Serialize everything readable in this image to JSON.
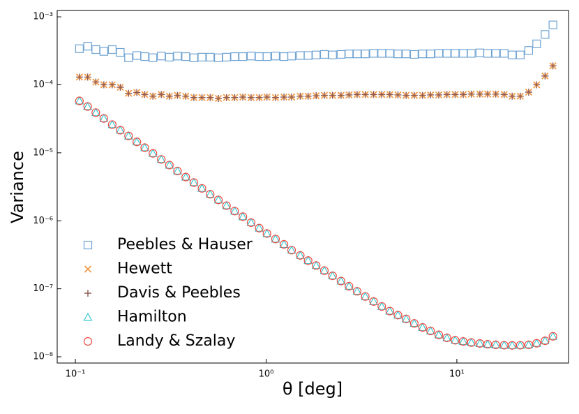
{
  "chart_data": {
    "type": "scatter",
    "x_label": "θ [deg]",
    "y_label": "Variance",
    "log_x": true,
    "log_y": true,
    "legend_position": "lower left",
    "xlim": [
      0.0803,
      38.5
    ],
    "ylim": [
      8.09e-09,
      0.00124
    ],
    "xticks": [
      {
        "value": 0.1,
        "label": "10⁻¹"
      },
      {
        "value": 1,
        "label": "10⁰"
      },
      {
        "value": 10,
        "label": "10¹"
      }
    ],
    "yticks": [
      {
        "value": 1e-08,
        "label": "10⁻⁸"
      },
      {
        "value": 1e-07,
        "label": "10⁻⁷"
      },
      {
        "value": 1e-06,
        "label": "10⁻⁶"
      },
      {
        "value": 1e-05,
        "label": "10⁻⁵"
      },
      {
        "value": 0.0001,
        "label": "10⁻⁴"
      },
      {
        "value": 0.001,
        "label": "10⁻³"
      }
    ],
    "x": [
      0.105,
      0.116,
      0.128,
      0.141,
      0.156,
      0.172,
      0.19,
      0.21,
      0.231,
      0.255,
      0.282,
      0.311,
      0.343,
      0.379,
      0.418,
      0.461,
      0.509,
      0.562,
      0.62,
      0.684,
      0.755,
      0.834,
      0.92,
      1.01,
      1.12,
      1.24,
      1.36,
      1.51,
      1.66,
      1.83,
      2.02,
      2.23,
      2.47,
      2.72,
      3.0,
      3.31,
      3.66,
      4.04,
      4.45,
      4.91,
      5.42,
      5.98,
      6.61,
      7.28,
      8.04,
      8.87,
      9.79,
      10.8,
      11.9,
      13.2,
      14.5,
      16.0,
      17.7,
      19.5,
      21.5,
      23.8,
      26.2,
      29.0,
      31.9
    ],
    "series": [
      {
        "name": "Peebles & Hauser",
        "color": "#6fa3d2",
        "marker": "square",
        "values": [
          0.00034,
          0.00037,
          0.00033,
          0.00031,
          0.00033,
          0.0003,
          0.00025,
          0.00027,
          0.00026,
          0.00025,
          0.000265,
          0.000255,
          0.000265,
          0.00026,
          0.00025,
          0.000255,
          0.000255,
          0.00025,
          0.000255,
          0.00026,
          0.00026,
          0.000265,
          0.00026,
          0.00026,
          0.000265,
          0.00026,
          0.000265,
          0.00027,
          0.00027,
          0.000275,
          0.00028,
          0.000275,
          0.00028,
          0.000285,
          0.000285,
          0.000285,
          0.00029,
          0.00029,
          0.00029,
          0.000285,
          0.000285,
          0.00028,
          0.000285,
          0.000285,
          0.00029,
          0.00029,
          0.00029,
          0.00029,
          0.00029,
          0.000295,
          0.00029,
          0.00029,
          0.00029,
          0.000275,
          0.000275,
          0.00032,
          0.0004,
          0.00055,
          0.00076
        ]
      },
      {
        "name": "Hewett",
        "color": "#f39c4a",
        "marker": "x",
        "values": [
          0.00013,
          0.00013,
          0.00011,
          0.0001,
          0.0001,
          9.2e-05,
          7.5e-05,
          7.7e-05,
          7.2e-05,
          6.8e-05,
          7.2e-05,
          6.8e-05,
          7e-05,
          6.8e-05,
          6.5e-05,
          6.5e-05,
          6.5e-05,
          6.3e-05,
          6.5e-05,
          6.5e-05,
          6.6e-05,
          6.5e-05,
          6.5e-05,
          6.6e-05,
          6.5e-05,
          6.6e-05,
          6.6e-05,
          6.8e-05,
          6.8e-05,
          6.9e-05,
          7e-05,
          7e-05,
          7e-05,
          7.1e-05,
          7.2e-05,
          7.2e-05,
          7.2e-05,
          7.2e-05,
          7.2e-05,
          7.1e-05,
          7e-05,
          7e-05,
          7e-05,
          7.1e-05,
          7.1e-05,
          7.2e-05,
          7.2e-05,
          7.2e-05,
          7.3e-05,
          7.3e-05,
          7.3e-05,
          7.3e-05,
          7.2e-05,
          6.8e-05,
          6.8e-05,
          7.8e-05,
          0.0001,
          0.000135,
          0.00019
        ]
      },
      {
        "name": "Davis & Peebles",
        "color": "#8c5a55",
        "marker": "plus",
        "values": [
          0.00013,
          0.00013,
          0.00011,
          0.0001,
          0.0001,
          9.2e-05,
          7.5e-05,
          7.7e-05,
          7.2e-05,
          6.8e-05,
          7.2e-05,
          6.8e-05,
          7e-05,
          6.8e-05,
          6.5e-05,
          6.5e-05,
          6.5e-05,
          6.3e-05,
          6.5e-05,
          6.5e-05,
          6.6e-05,
          6.5e-05,
          6.5e-05,
          6.6e-05,
          6.5e-05,
          6.6e-05,
          6.6e-05,
          6.8e-05,
          6.8e-05,
          6.9e-05,
          7e-05,
          7e-05,
          7e-05,
          7.1e-05,
          7.2e-05,
          7.2e-05,
          7.2e-05,
          7.2e-05,
          7.2e-05,
          7.1e-05,
          7e-05,
          7e-05,
          7e-05,
          7.1e-05,
          7.1e-05,
          7.2e-05,
          7.2e-05,
          7.2e-05,
          7.3e-05,
          7.3e-05,
          7.3e-05,
          7.3e-05,
          7.2e-05,
          6.8e-05,
          6.8e-05,
          7.8e-05,
          0.0001,
          0.000135,
          0.00019
        ]
      },
      {
        "name": "Hamilton",
        "color": "#3cc8d0",
        "marker": "triangle",
        "values": [
          5.8e-05,
          4.8e-05,
          3.9e-05,
          3.2e-05,
          2.6e-05,
          2.15e-05,
          1.77e-05,
          1.45e-05,
          1.19e-05,
          9.8e-06,
          8e-06,
          6.6e-06,
          5.4e-06,
          4.4e-06,
          3.65e-06,
          3e-06,
          2.46e-06,
          2.03e-06,
          1.67e-06,
          1.39e-06,
          1.15e-06,
          9.4e-07,
          7.8e-07,
          6.5e-07,
          5.4e-07,
          4.5e-07,
          3.7e-07,
          3.1e-07,
          2.6e-07,
          2.2e-07,
          1.85e-07,
          1.55e-07,
          1.3e-07,
          1.09e-07,
          9.2e-08,
          7.7e-08,
          6.5e-08,
          5.5e-08,
          4.7e-08,
          4.1e-08,
          3.6e-08,
          3.1e-08,
          2.7e-08,
          2.4e-08,
          2.1e-08,
          1.9e-08,
          1.75e-08,
          1.68e-08,
          1.62e-08,
          1.57e-08,
          1.53e-08,
          1.5e-08,
          1.48e-08,
          1.47e-08,
          1.48e-08,
          1.5e-08,
          1.58e-08,
          1.72e-08,
          2e-08
        ]
      },
      {
        "name": "Landy & Szalay",
        "color": "#ee4a42",
        "marker": "circle",
        "values": [
          5.8e-05,
          4.8e-05,
          3.9e-05,
          3.2e-05,
          2.6e-05,
          2.15e-05,
          1.77e-05,
          1.45e-05,
          1.19e-05,
          9.8e-06,
          8e-06,
          6.6e-06,
          5.4e-06,
          4.4e-06,
          3.65e-06,
          3e-06,
          2.46e-06,
          2.03e-06,
          1.67e-06,
          1.39e-06,
          1.15e-06,
          9.4e-07,
          7.8e-07,
          6.5e-07,
          5.4e-07,
          4.5e-07,
          3.7e-07,
          3.1e-07,
          2.6e-07,
          2.2e-07,
          1.85e-07,
          1.55e-07,
          1.3e-07,
          1.09e-07,
          9.2e-08,
          7.7e-08,
          6.5e-08,
          5.5e-08,
          4.7e-08,
          4.1e-08,
          3.6e-08,
          3.1e-08,
          2.7e-08,
          2.4e-08,
          2.1e-08,
          1.9e-08,
          1.75e-08,
          1.68e-08,
          1.62e-08,
          1.57e-08,
          1.53e-08,
          1.5e-08,
          1.48e-08,
          1.47e-08,
          1.48e-08,
          1.5e-08,
          1.58e-08,
          1.72e-08,
          2e-08
        ]
      }
    ]
  }
}
